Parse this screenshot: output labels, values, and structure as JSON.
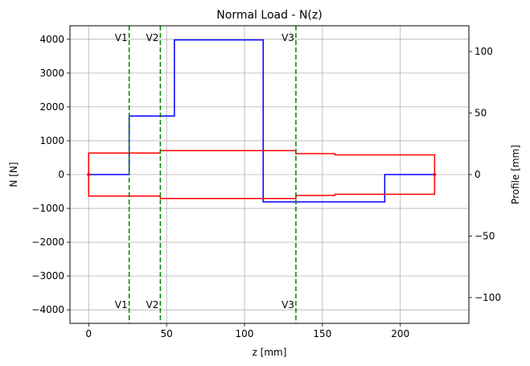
{
  "chart_data": {
    "type": "line",
    "title": "Normal Load - N(z)",
    "xlabel": "z [mm]",
    "ylabel_left": "N [N]",
    "ylabel_right": "Profile [mm]",
    "xlim": [
      -12,
      244
    ],
    "ylim_left": [
      -4400,
      4400
    ],
    "ylim_right": [
      -121,
      121
    ],
    "grid": true,
    "x_ticks": [
      0,
      50,
      100,
      150,
      200
    ],
    "y_left_ticks": [
      -4000,
      -3000,
      -2000,
      -1000,
      0,
      1000,
      2000,
      3000,
      4000
    ],
    "y_right_ticks": [
      -100,
      -50,
      0,
      50,
      100
    ],
    "colors": {
      "normal_load": "#0000ff",
      "profile": "#ff0000",
      "markers": "#008000",
      "grid": "#b0b0b0"
    },
    "normal_load": [
      [
        0,
        0
      ],
      [
        26,
        0
      ],
      [
        26,
        1730
      ],
      [
        55,
        1730
      ],
      [
        55,
        3980
      ],
      [
        112,
        3980
      ],
      [
        112,
        -810
      ],
      [
        190,
        -810
      ],
      [
        190,
        0
      ],
      [
        222,
        0
      ]
    ],
    "profile_upper": [
      [
        0,
        0
      ],
      [
        0,
        17.5
      ],
      [
        46,
        17.5
      ],
      [
        46,
        19.5
      ],
      [
        133,
        19.5
      ],
      [
        133,
        17
      ],
      [
        158,
        17
      ],
      [
        158,
        16
      ],
      [
        222,
        16
      ],
      [
        222,
        0
      ]
    ],
    "profile_lower": [
      [
        0,
        0
      ],
      [
        0,
        -17.5
      ],
      [
        46,
        -17.5
      ],
      [
        46,
        -19.5
      ],
      [
        133,
        -19.5
      ],
      [
        133,
        -17
      ],
      [
        158,
        -17
      ],
      [
        158,
        -16
      ],
      [
        222,
        -16
      ],
      [
        222,
        0
      ]
    ],
    "markers": [
      {
        "label": "V1",
        "z": 26
      },
      {
        "label": "V2",
        "z": 46
      },
      {
        "label": "V3",
        "z": 133
      }
    ]
  }
}
